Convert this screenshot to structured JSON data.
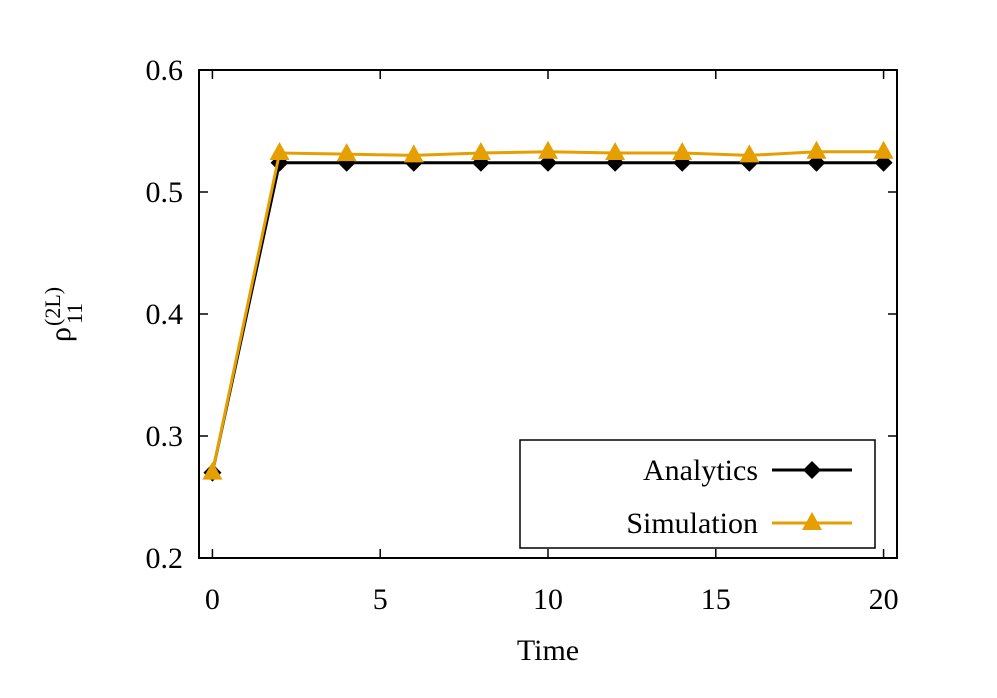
{
  "chart_data": {
    "type": "line",
    "title": "",
    "xlabel": "Time",
    "ylabel": "ρ",
    "ylabel_superscript": "(2L)",
    "ylabel_subscript": "11",
    "xlim": [
      -0.4,
      20.4
    ],
    "ylim": [
      0.2,
      0.6
    ],
    "xticks": [
      0,
      5,
      10,
      15,
      20
    ],
    "xtick_labels": [
      "0",
      "5",
      "10",
      "15",
      "20"
    ],
    "yticks": [
      0.2,
      0.3,
      0.4,
      0.5,
      0.6
    ],
    "ytick_labels": [
      "0.2",
      "0.3",
      "0.4",
      "0.5",
      "0.6"
    ],
    "grid": false,
    "legend_placement": "bottom-right",
    "x": [
      0,
      2,
      4,
      6,
      8,
      10,
      12,
      14,
      16,
      18,
      20
    ],
    "series": [
      {
        "name": "Analytics",
        "color": "#000000",
        "marker": "diamond",
        "values": [
          0.27,
          0.524,
          0.524,
          0.524,
          0.524,
          0.524,
          0.524,
          0.524,
          0.524,
          0.524,
          0.524
        ]
      },
      {
        "name": "Simulation",
        "color": "#E69F00",
        "marker": "triangle",
        "values": [
          0.27,
          0.532,
          0.531,
          0.53,
          0.532,
          0.533,
          0.532,
          0.532,
          0.53,
          0.533,
          0.533
        ]
      }
    ]
  }
}
